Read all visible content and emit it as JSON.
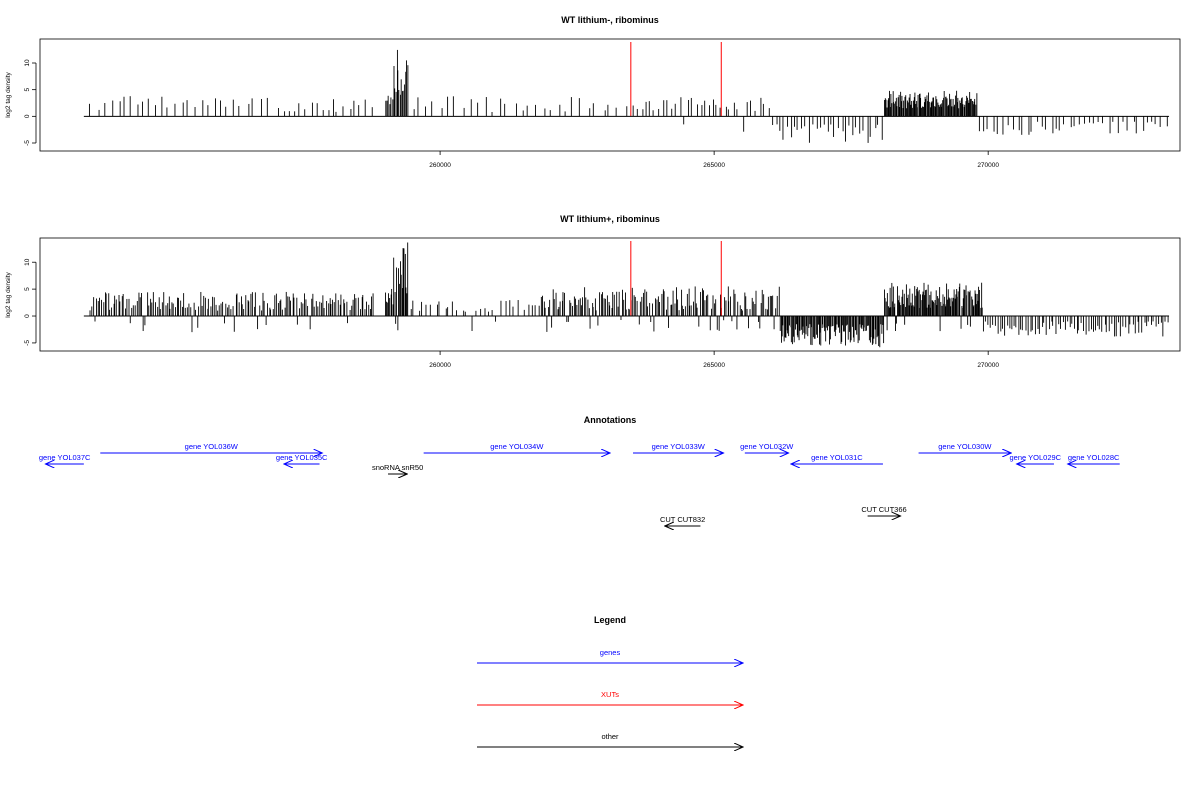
{
  "chart_data": [
    {
      "type": "bar",
      "title": "WT lithium-, ribominus",
      "ylabel": "log2 tag density",
      "xlabel": "",
      "xlim": [
        252700,
        273500
      ],
      "ylim": [
        -6.5,
        14.5
      ],
      "x_ticks": [
        260000,
        265000,
        270000
      ],
      "x_tick_labels": [
        "260000",
        "265000",
        "270000"
      ],
      "y_ticks": [
        -5,
        0,
        5,
        10
      ],
      "y_tick_labels": [
        "-5",
        "0",
        "5",
        "10"
      ],
      "markers": [
        263480,
        265130
      ],
      "marker_color": "#ff0000",
      "segments": [
        {
          "from": 253600,
          "to": 256900,
          "n": 28,
          "lo": 1.0,
          "hi": 3.8,
          "neg": 0
        },
        {
          "from": 257000,
          "to": 258800,
          "n": 18,
          "lo": 0.8,
          "hi": 3.2,
          "neg": 0
        },
        {
          "from": 259000,
          "to": 259150,
          "n": 6,
          "lo": 2.0,
          "hi": 5.0,
          "neg": 0
        },
        {
          "from": 259150,
          "to": 259420,
          "n": 14,
          "lo": 4.0,
          "hi": 13.4,
          "neg": 0
        },
        {
          "from": 259420,
          "to": 263450,
          "n": 30,
          "lo": 0.8,
          "hi": 3.8,
          "neg": 0.05
        },
        {
          "from": 263500,
          "to": 266100,
          "n": 34,
          "lo": 1.0,
          "hi": 3.6,
          "neg": 0.05
        },
        {
          "from": 266100,
          "to": 268100,
          "n": 30,
          "lo": 0,
          "hi": 0,
          "neg": 1,
          "nlo": -1.5,
          "nhi": -5.2
        },
        {
          "from": 268100,
          "to": 269800,
          "n": 110,
          "lo": 1.5,
          "hi": 4.8,
          "neg": 0
        },
        {
          "from": 269800,
          "to": 273300,
          "n": 40,
          "lo": 0,
          "hi": 0,
          "neg": 1,
          "nlo": -1.0,
          "nhi": -3.5
        }
      ]
    },
    {
      "type": "bar",
      "title": "WT lithium+, ribominus",
      "ylabel": "log2 tag density",
      "xlabel": "",
      "xlim": [
        252700,
        273500
      ],
      "ylim": [
        -6.5,
        14.5
      ],
      "x_ticks": [
        260000,
        265000,
        270000
      ],
      "x_tick_labels": [
        "260000",
        "265000",
        "270000"
      ],
      "y_ticks": [
        -5,
        0,
        5,
        10
      ],
      "y_tick_labels": [
        "-5",
        "0",
        "5",
        "10"
      ],
      "markers": [
        263480,
        265130
      ],
      "marker_color": "#ff0000",
      "segments": [
        {
          "from": 253600,
          "to": 258800,
          "n": 170,
          "lo": 1.0,
          "hi": 4.5,
          "neg": 0.08
        },
        {
          "from": 259000,
          "to": 259150,
          "n": 8,
          "lo": 2.0,
          "hi": 6.0,
          "neg": 0
        },
        {
          "from": 259150,
          "to": 259420,
          "n": 16,
          "lo": 4.0,
          "hi": 13.8,
          "neg": 0.1
        },
        {
          "from": 259420,
          "to": 261800,
          "n": 30,
          "lo": 0.8,
          "hi": 3.0,
          "neg": 0.05
        },
        {
          "from": 261800,
          "to": 266200,
          "n": 160,
          "lo": 1.0,
          "hi": 5.5,
          "neg": 0.12
        },
        {
          "from": 266200,
          "to": 268100,
          "n": 110,
          "lo": 0,
          "hi": 0,
          "neg": 1,
          "nlo": -1.5,
          "nhi": -5.8
        },
        {
          "from": 268100,
          "to": 269900,
          "n": 120,
          "lo": 1.5,
          "hi": 6.2,
          "neg": 0.05
        },
        {
          "from": 269900,
          "to": 273300,
          "n": 80,
          "lo": 0,
          "hi": 0,
          "neg": 1,
          "nlo": -1.0,
          "nhi": -3.8
        }
      ]
    }
  ],
  "annotations": {
    "title": "Annotations",
    "items": [
      {
        "label": "gene YOL036W",
        "x1": 253800,
        "x2": 257850,
        "row": 1,
        "dir": "right",
        "color": "#0000ff"
      },
      {
        "label": "gene YOL037C",
        "x1": 252800,
        "x2": 253500,
        "row": 2,
        "dir": "left",
        "color": "#0000ff"
      },
      {
        "label": "gene YOL035C",
        "x1": 257150,
        "x2": 257800,
        "row": 2,
        "dir": "left",
        "color": "#0000ff"
      },
      {
        "label": "snoRNA snR50",
        "x1": 259050,
        "x2": 259400,
        "row": 3,
        "dir": "right",
        "color": "#000000"
      },
      {
        "label": "gene YOL034W",
        "x1": 259700,
        "x2": 263100,
        "row": 1,
        "dir": "right",
        "color": "#0000ff"
      },
      {
        "label": "gene YOL033W",
        "x1": 263520,
        "x2": 265170,
        "row": 1,
        "dir": "right",
        "color": "#0000ff"
      },
      {
        "label": "gene YOL032W",
        "x1": 265560,
        "x2": 266360,
        "row": 1,
        "dir": "right",
        "color": "#0000ff"
      },
      {
        "label": "gene YOL031C",
        "x1": 266400,
        "x2": 268080,
        "row": 2,
        "dir": "left",
        "color": "#0000ff"
      },
      {
        "label": "gene YOL030W",
        "x1": 268730,
        "x2": 270420,
        "row": 1,
        "dir": "right",
        "color": "#0000ff"
      },
      {
        "label": "gene YOL029C",
        "x1": 270520,
        "x2": 271200,
        "row": 2,
        "dir": "left",
        "color": "#0000ff"
      },
      {
        "label": "gene YOL028C",
        "x1": 271450,
        "x2": 272400,
        "row": 2,
        "dir": "left",
        "color": "#0000ff"
      },
      {
        "label": "CUT CUT832",
        "x1": 264100,
        "x2": 264750,
        "row": 5,
        "dir": "left",
        "color": "#000000"
      },
      {
        "label": "CUT CUT366",
        "x1": 267800,
        "x2": 268400,
        "row": 4,
        "dir": "right",
        "color": "#000000"
      }
    ]
  },
  "legend": {
    "title": "Legend",
    "entries": [
      {
        "label": "genes",
        "color": "#0000ff"
      },
      {
        "label": "XUTs",
        "color": "#ff0000"
      },
      {
        "label": "other",
        "color": "#000000"
      }
    ]
  }
}
